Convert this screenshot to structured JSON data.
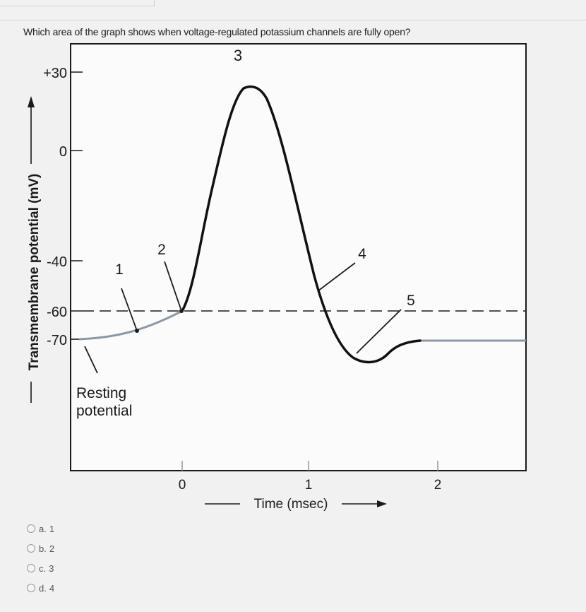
{
  "question": {
    "text": "Which area of the graph shows when voltage-regulated potassium channels are fully open?"
  },
  "graph": {
    "y_axis_label": "Transmembrane potential (mV)",
    "y_ticks": [
      "+30",
      "0",
      "-40",
      "-60",
      "-70"
    ],
    "x_axis_label": "Time (msec)",
    "x_ticks": [
      "0",
      "1",
      "2"
    ],
    "region_labels": [
      "1",
      "2",
      "3",
      "4",
      "5"
    ],
    "resting_label_line1": "Resting",
    "resting_label_line2": "potential"
  },
  "choices": [
    {
      "letter": "a.",
      "value": "1"
    },
    {
      "letter": "b.",
      "value": "2"
    },
    {
      "letter": "c.",
      "value": "3"
    },
    {
      "letter": "d.",
      "value": "4"
    }
  ]
}
